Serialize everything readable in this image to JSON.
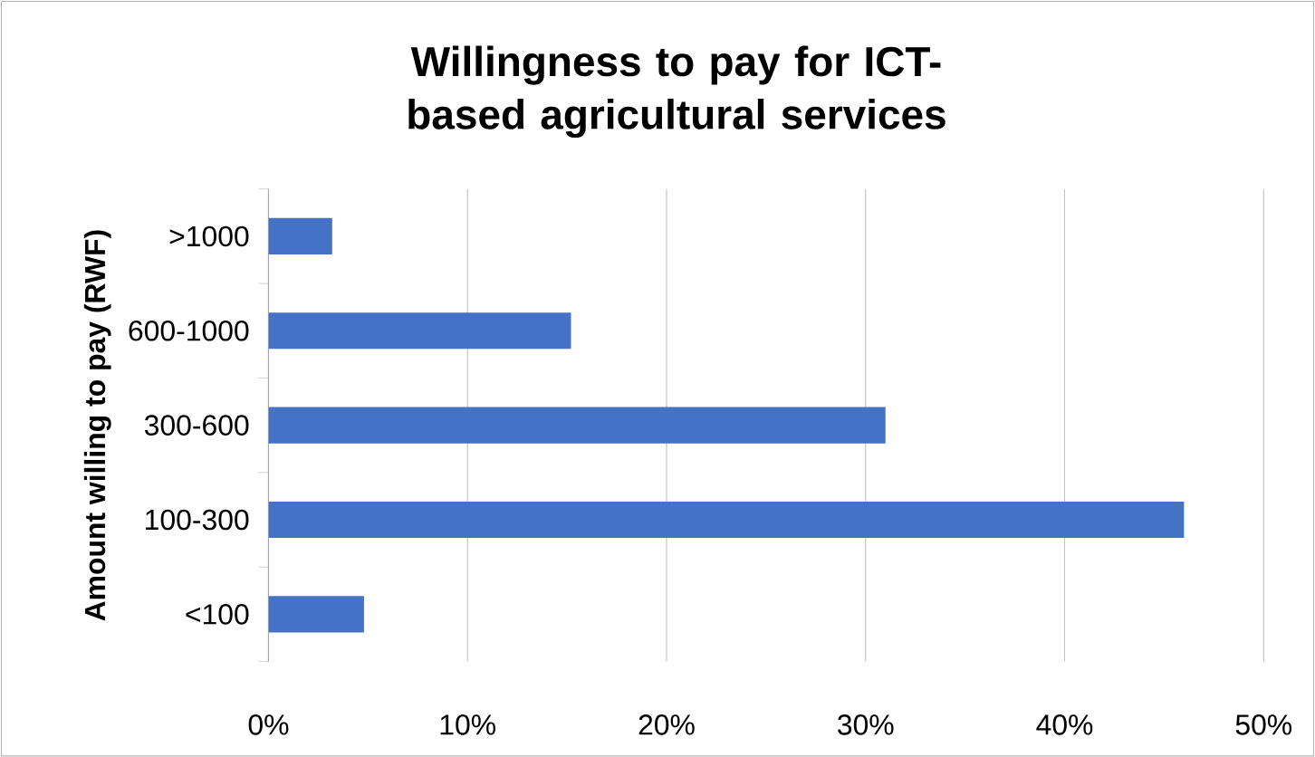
{
  "chart_data": {
    "type": "bar",
    "orientation": "horizontal",
    "title": "Willingness to pay for ICT-based agricultural services",
    "ylabel": "Amount willing to pay (RWF)",
    "categories": [
      ">1000",
      "600-1000",
      "300-600",
      "100-300",
      "<100"
    ],
    "values": [
      3.2,
      15.2,
      31.0,
      46.0,
      4.8
    ],
    "color": "#4472c4",
    "xlim": [
      0,
      50
    ],
    "xticks": [
      {
        "value": 0,
        "label": "0%"
      },
      {
        "value": 10,
        "label": "10%"
      },
      {
        "value": 20,
        "label": "20%"
      },
      {
        "value": 30,
        "label": "30%"
      },
      {
        "value": 40,
        "label": "40%"
      },
      {
        "value": 50,
        "label": "50%"
      }
    ],
    "grid": "x"
  }
}
